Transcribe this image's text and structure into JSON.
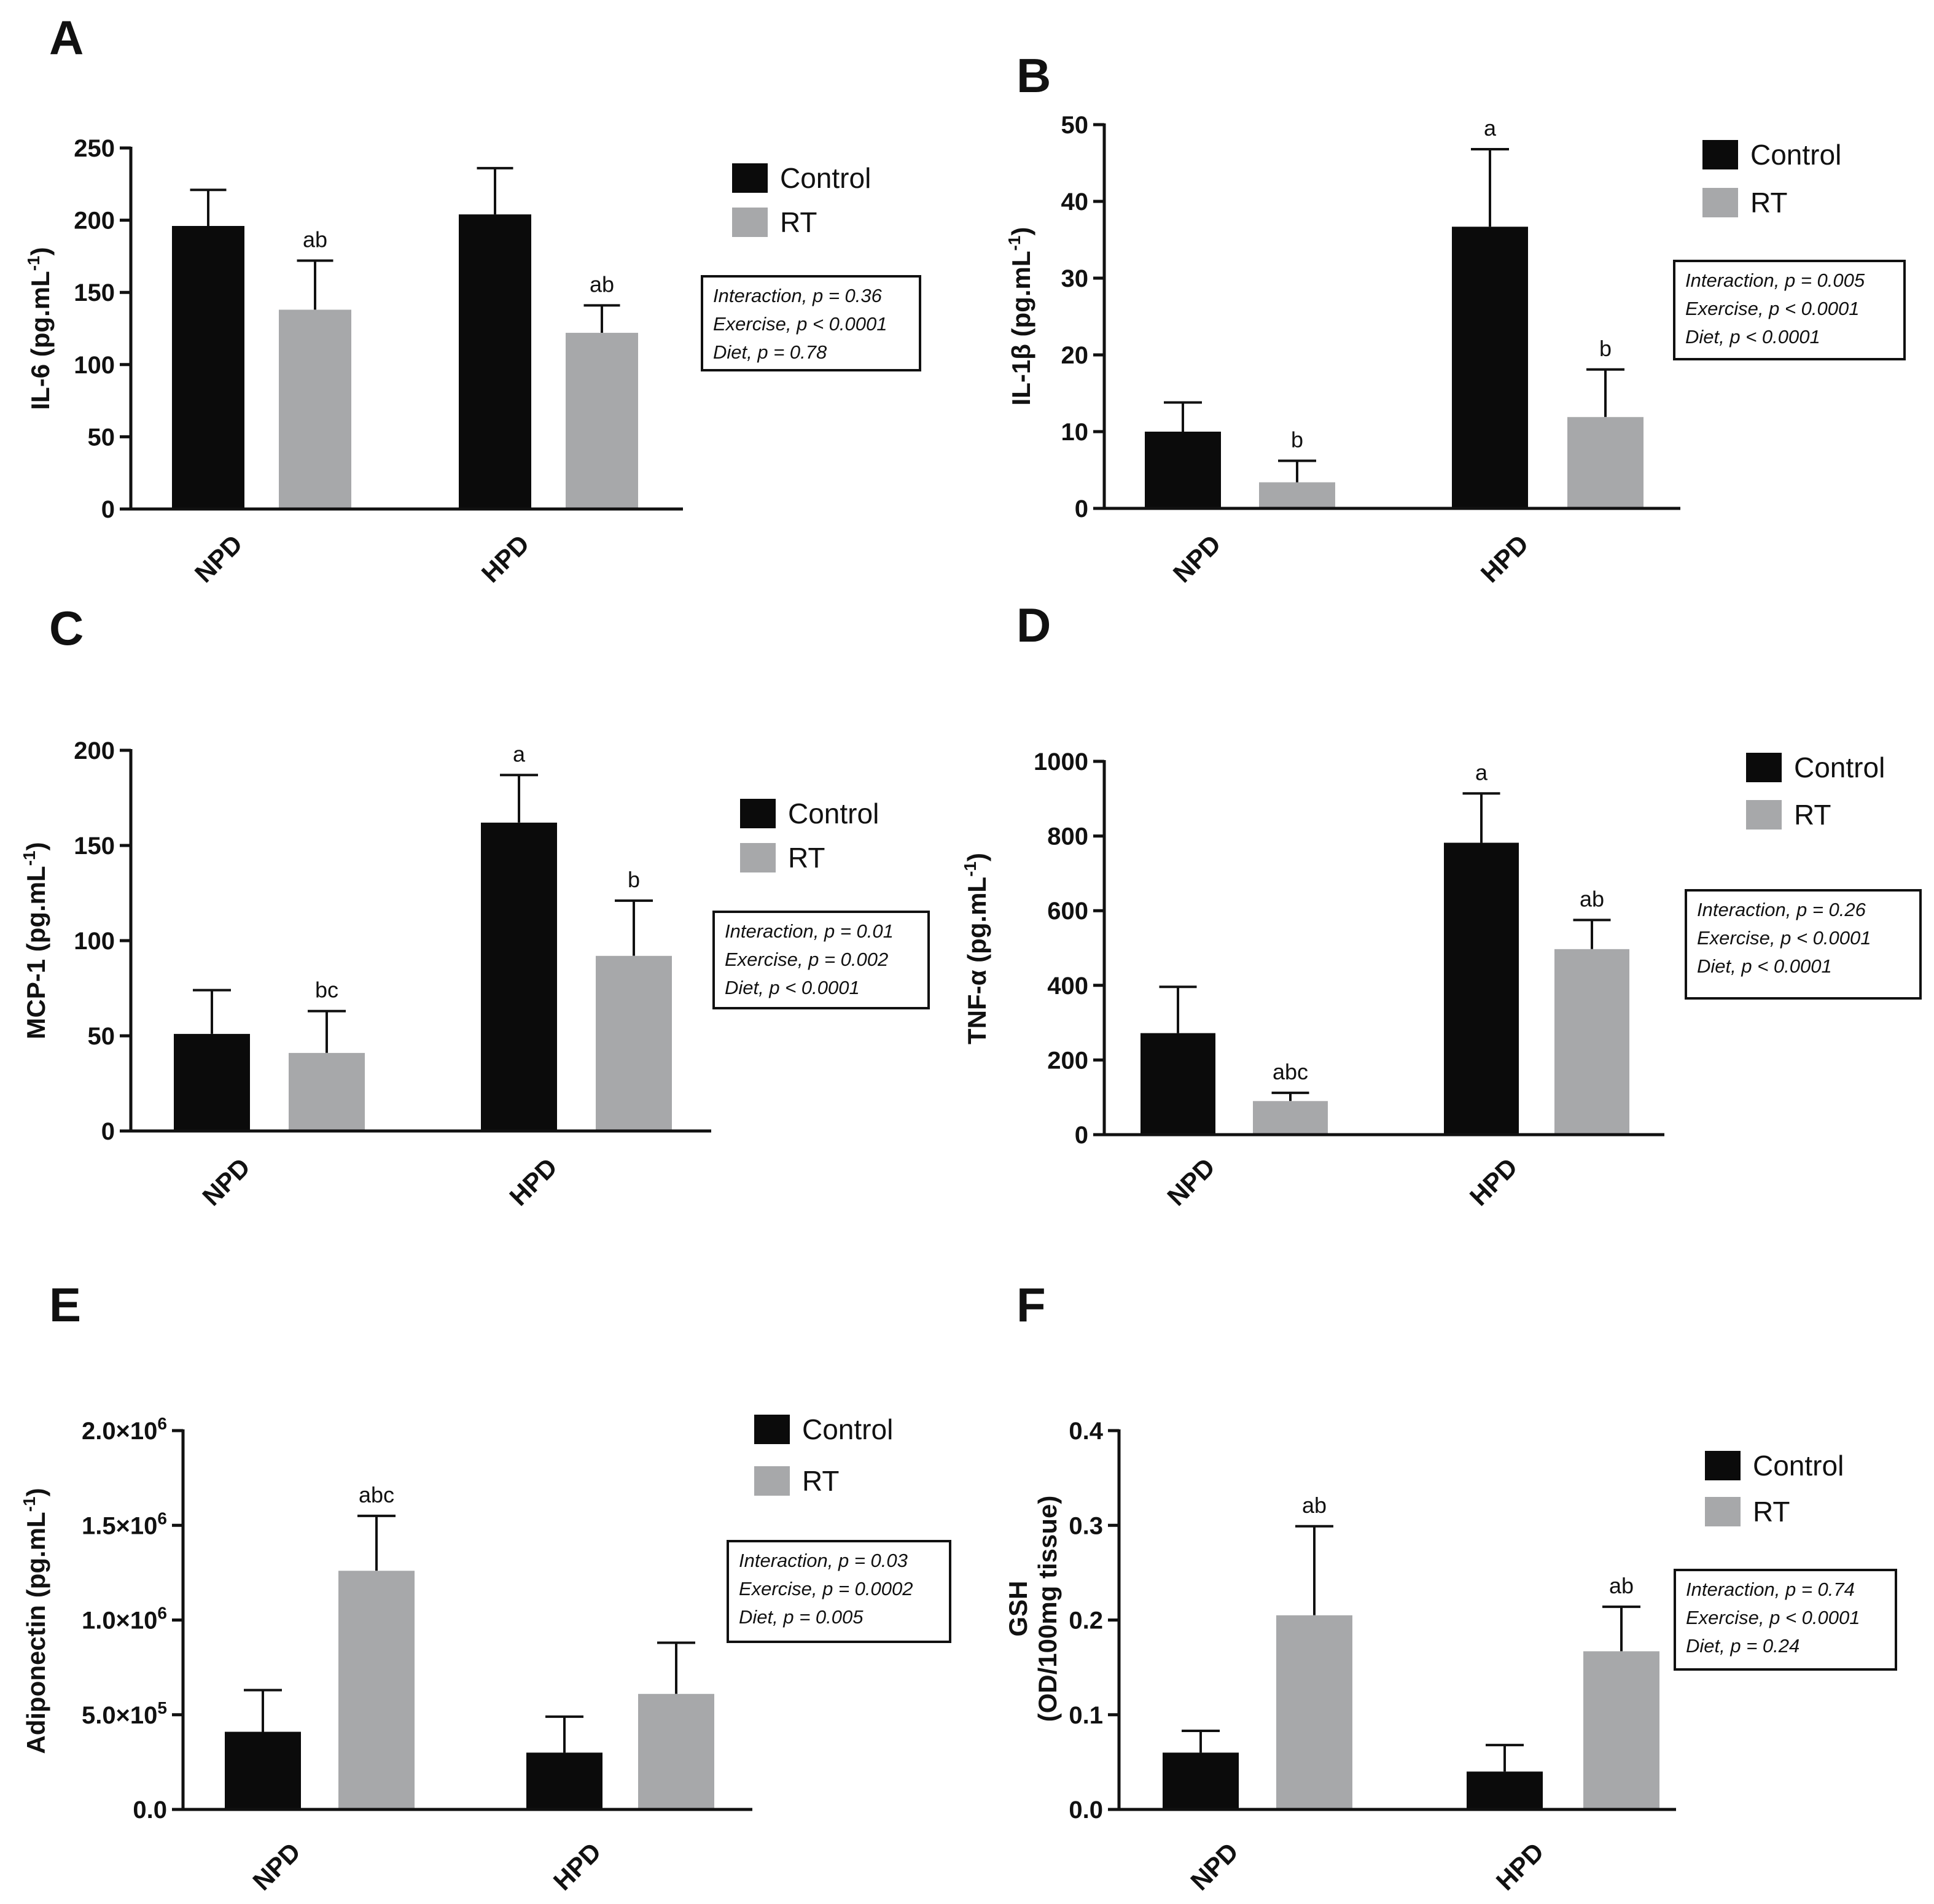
{
  "colors": {
    "control": "#0b0b0b",
    "rt": "#a7a8aa",
    "axis": "#111111"
  },
  "chart_data": [
    {
      "panel": "A",
      "type": "bar",
      "categories": [
        "NPD",
        "HPD"
      ],
      "series": [
        {
          "name": "Control",
          "values": [
            196,
            204
          ],
          "errors": [
            221,
            236
          ],
          "labels": [
            "",
            ""
          ]
        },
        {
          "name": "RT",
          "values": [
            138,
            122
          ],
          "errors": [
            172,
            141
          ],
          "labels": [
            "ab",
            "ab"
          ]
        }
      ],
      "ylabel": "IL-6 (pg.mL",
      "ylabel_sup": "-1",
      "ylabel_close": ")",
      "ylim": [
        0,
        250
      ],
      "ticks": [
        0,
        50,
        100,
        150,
        200,
        250
      ],
      "tick_labels": [
        "0",
        "50",
        "100",
        "150",
        "200",
        "250"
      ],
      "stats": [
        "Interaction, p = 0.36",
        "Exercise, p < 0.0001",
        "Diet, p = 0.78"
      ]
    },
    {
      "panel": "B",
      "type": "bar",
      "categories": [
        "NPD",
        "HPD"
      ],
      "series": [
        {
          "name": "Control",
          "values": [
            10,
            36.7
          ],
          "errors": [
            13.8,
            46.8
          ],
          "labels": [
            "",
            "a"
          ]
        },
        {
          "name": "RT",
          "values": [
            3.4,
            11.9
          ],
          "errors": [
            6.2,
            18.1
          ],
          "labels": [
            "b",
            "b"
          ]
        }
      ],
      "ylabel": "IL-1β (pg.mL",
      "ylabel_sup": "-1",
      "ylabel_close": ")",
      "ylim": [
        0,
        50
      ],
      "ticks": [
        0,
        10,
        20,
        30,
        40,
        50
      ],
      "tick_labels": [
        "0",
        "10",
        "20",
        "30",
        "40",
        "50"
      ],
      "stats": [
        "Interaction, p = 0.005",
        "Exercise, p < 0.0001",
        "Diet, p < 0.0001"
      ]
    },
    {
      "panel": "C",
      "type": "bar",
      "categories": [
        "NPD",
        "HPD"
      ],
      "series": [
        {
          "name": "Control",
          "values": [
            51,
            162
          ],
          "errors": [
            74,
            187
          ],
          "labels": [
            "",
            "a"
          ]
        },
        {
          "name": "RT",
          "values": [
            41,
            92
          ],
          "errors": [
            63,
            121
          ],
          "labels": [
            "bc",
            "b"
          ]
        }
      ],
      "ylabel": "MCP-1 (pg.mL",
      "ylabel_sup": "-1",
      "ylabel_close": ")",
      "ylim": [
        0,
        200
      ],
      "ticks": [
        0,
        50,
        100,
        150,
        200
      ],
      "tick_labels": [
        "0",
        "50",
        "100",
        "150",
        "200"
      ],
      "stats": [
        "Interaction, p = 0.01",
        "Exercise, p = 0.002",
        "Diet, p < 0.0001"
      ]
    },
    {
      "panel": "D",
      "type": "bar",
      "categories": [
        "NPD",
        "HPD"
      ],
      "series": [
        {
          "name": "Control",
          "values": [
            272,
            782
          ],
          "errors": [
            396,
            914
          ],
          "labels": [
            "",
            "a"
          ]
        },
        {
          "name": "RT",
          "values": [
            90,
            497
          ],
          "errors": [
            112,
            575
          ],
          "labels": [
            "abc",
            "ab"
          ]
        }
      ],
      "ylabel": "TNF-α (pg.mL",
      "ylabel_sup": "-1",
      "ylabel_close": ")",
      "ylim": [
        0,
        1000
      ],
      "ticks": [
        0,
        200,
        400,
        600,
        800,
        1000
      ],
      "tick_labels": [
        "0",
        "200",
        "400",
        "600",
        "800",
        "1000"
      ],
      "stats": [
        "Interaction, p = 0.26",
        "Exercise, p < 0.0001",
        "Diet, p < 0.0001"
      ]
    },
    {
      "panel": "E",
      "type": "bar",
      "categories": [
        "NPD",
        "HPD"
      ],
      "series": [
        {
          "name": "Control",
          "values": [
            410000,
            300000
          ],
          "errors": [
            630000,
            490000
          ],
          "labels": [
            "",
            ""
          ]
        },
        {
          "name": "RT",
          "values": [
            1260000,
            610000
          ],
          "errors": [
            1550000,
            880000
          ],
          "labels": [
            "abc",
            ""
          ]
        }
      ],
      "ylabel": "Adiponectin (pg.mL",
      "ylabel_sup": "-1",
      "ylabel_close": ")",
      "ylim": [
        0,
        2000000
      ],
      "ticks": [
        0,
        500000,
        1000000,
        1500000,
        2000000
      ],
      "tick_labels": [
        "0.0",
        "5.0×10",
        "1.0×10",
        "1.5×10",
        "2.0×10"
      ],
      "tick_sups": [
        "",
        "5",
        "6",
        "6",
        "6"
      ],
      "stats": [
        "Interaction, p = 0.03",
        "Exercise, p = 0.0002",
        "Diet, p = 0.005"
      ]
    },
    {
      "panel": "F",
      "type": "bar",
      "categories": [
        "NPD",
        "HPD"
      ],
      "series": [
        {
          "name": "Control",
          "values": [
            0.06,
            0.04
          ],
          "errors": [
            0.083,
            0.068
          ],
          "labels": [
            "",
            ""
          ]
        },
        {
          "name": "RT",
          "values": [
            0.205,
            0.167
          ],
          "errors": [
            0.299,
            0.214
          ],
          "labels": [
            "ab",
            "ab"
          ]
        }
      ],
      "ylabel": "GSH",
      "ylabel2": "(OD/100mg tissue)",
      "ylim": [
        0,
        0.4
      ],
      "ticks": [
        0,
        0.1,
        0.2,
        0.3,
        0.4
      ],
      "tick_labels": [
        "0.0",
        "0.1",
        "0.2",
        "0.3",
        "0.4"
      ],
      "stats": [
        "Interaction, p = 0.74",
        "Exercise, p < 0.0001",
        "Diet, p = 0.24"
      ]
    }
  ]
}
